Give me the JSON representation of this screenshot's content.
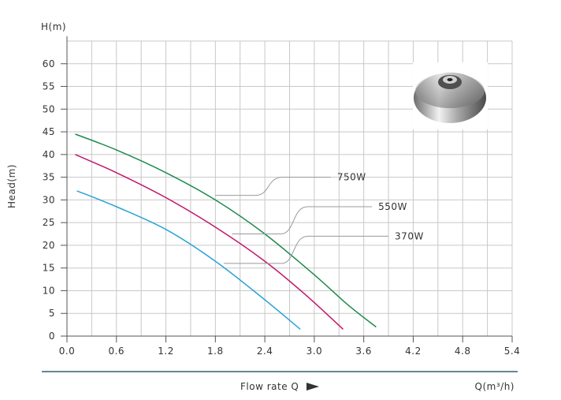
{
  "chart_data": {
    "type": "line",
    "ylabel_top": "H(m)",
    "ylabel": "Head(m)",
    "xlabel": "Flow rate Q",
    "xunit_label": "Q(m³/h)",
    "xlim": [
      0,
      5.4
    ],
    "ylim": [
      0,
      65
    ],
    "x_ticks": [
      0.0,
      0.6,
      1.2,
      1.8,
      2.4,
      3.0,
      3.6,
      4.2,
      4.8,
      5.4
    ],
    "x_tick_labels": [
      "0.0",
      "0.6",
      "1.2",
      "1.8",
      "2.4",
      "3.0",
      "3.6",
      "4.2",
      "4.8",
      "5.4"
    ],
    "y_ticks": [
      0,
      5,
      10,
      15,
      20,
      25,
      30,
      35,
      40,
      45,
      50,
      55,
      60
    ],
    "y_tick_labels": [
      "0",
      "5",
      "10",
      "15",
      "20",
      "25",
      "30",
      "35",
      "40",
      "45",
      "50",
      "55",
      "60"
    ],
    "grid": true,
    "series": [
      {
        "name": "750W",
        "color": "#1e8a4e",
        "x": [
          0.1,
          0.6,
          1.2,
          1.8,
          2.4,
          3.0,
          3.4,
          3.75
        ],
        "y": [
          44.5,
          41.0,
          36.0,
          30.0,
          22.5,
          13.5,
          7.0,
          2.0
        ]
      },
      {
        "name": "550W",
        "color": "#c2186b",
        "x": [
          0.1,
          0.6,
          1.2,
          1.8,
          2.4,
          2.9,
          3.35
        ],
        "y": [
          40.0,
          36.0,
          30.5,
          24.0,
          16.5,
          9.0,
          1.5
        ]
      },
      {
        "name": "370W",
        "color": "#2aa3d6",
        "x": [
          0.12,
          0.6,
          1.2,
          1.8,
          2.4,
          2.83
        ],
        "y": [
          32.0,
          28.5,
          23.5,
          16.5,
          8.0,
          1.5
        ]
      }
    ],
    "annotations": [
      {
        "series": "750W",
        "text": "750W",
        "point": [
          1.8,
          31.0
        ],
        "label_at": [
          3.2,
          35.0
        ]
      },
      {
        "series": "550W",
        "text": "550W",
        "point": [
          2.0,
          22.5
        ],
        "label_at": [
          3.7,
          28.5
        ]
      },
      {
        "series": "370W",
        "text": "370W",
        "point": [
          1.9,
          16.0
        ],
        "label_at": [
          3.9,
          22.0
        ]
      }
    ],
    "inset_image": "impeller"
  }
}
